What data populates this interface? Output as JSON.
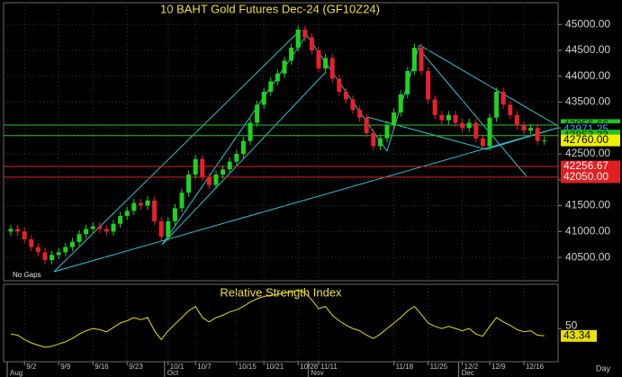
{
  "chart_data": [
    {
      "type": "candlestick",
      "title": "10 BAHT Gold Futures Dec-24 (GF10Z24)",
      "note": "No Gaps",
      "categories": [
        null,
        null,
        "9/2",
        null,
        null,
        null,
        null,
        "9/9",
        null,
        null,
        null,
        null,
        "9/16",
        null,
        null,
        null,
        null,
        "9/23",
        null,
        null,
        null,
        null,
        null,
        "10/1",
        null,
        null,
        null,
        "10/7",
        null,
        null,
        null,
        null,
        null,
        "10/15",
        null,
        null,
        null,
        "10/21",
        null,
        null,
        null,
        null,
        "10/28",
        null,
        null,
        "11/11",
        null,
        null,
        null,
        null,
        null,
        null,
        null,
        null,
        null,
        null,
        "11/18",
        null,
        null,
        null,
        null,
        "11/25",
        null,
        null,
        null,
        null,
        "12/2",
        null,
        null,
        null,
        "12/9",
        null,
        null,
        null,
        null,
        "12/16",
        null,
        null,
        null
      ],
      "months": [
        "Aug",
        null,
        null,
        null,
        null,
        null,
        null,
        null,
        null,
        null,
        null,
        null,
        null,
        null,
        null,
        null,
        null,
        null,
        null,
        null,
        null,
        null,
        null,
        "Oct",
        null,
        null,
        null,
        null,
        null,
        null,
        null,
        null,
        null,
        null,
        null,
        null,
        null,
        null,
        null,
        null,
        null,
        null,
        null,
        null,
        "Nov",
        null,
        null,
        null,
        null,
        null,
        null,
        null,
        null,
        null,
        null,
        null,
        null,
        null,
        null,
        null,
        null,
        null,
        null,
        null,
        null,
        null,
        "Dec",
        null,
        null,
        null,
        null,
        null,
        null,
        null,
        null,
        null,
        null,
        null,
        null
      ],
      "open": [
        41000,
        41050,
        41000,
        40850,
        40700,
        40600,
        40450,
        40550,
        40600,
        40700,
        40800,
        40950,
        41050,
        41100,
        41050,
        41000,
        41150,
        41300,
        41400,
        41550,
        41500,
        41600,
        41200,
        40900,
        41200,
        41450,
        41750,
        42100,
        42400,
        42050,
        41900,
        42100,
        42200,
        42350,
        42500,
        42750,
        43100,
        43450,
        43700,
        43900,
        44050,
        44300,
        44550,
        44900,
        44750,
        44500,
        44150,
        44350,
        43950,
        43700,
        43550,
        43350,
        43200,
        42900,
        42650,
        42800,
        43050,
        43300,
        43650,
        44100,
        44550,
        44100,
        43550,
        43250,
        43150,
        43250,
        43100,
        43000,
        43100,
        42800,
        42650,
        43200,
        43700,
        43450,
        43250,
        43050,
        42950,
        43000,
        42750
      ],
      "high": [
        41130,
        41130,
        41080,
        40930,
        40780,
        40680,
        40630,
        40680,
        40780,
        40880,
        41030,
        41130,
        41180,
        41180,
        41130,
        41230,
        41380,
        41480,
        41630,
        41630,
        41680,
        41680,
        41280,
        41280,
        41530,
        41830,
        42180,
        42480,
        42480,
        42130,
        42180,
        42280,
        42430,
        42580,
        42830,
        43180,
        43530,
        43780,
        43980,
        44130,
        44380,
        44630,
        44980,
        44980,
        44830,
        44580,
        44430,
        44430,
        44030,
        43780,
        43630,
        43430,
        43280,
        42980,
        42880,
        43130,
        43380,
        43730,
        44180,
        44630,
        44630,
        44180,
        43630,
        43330,
        43330,
        43330,
        43180,
        43180,
        43180,
        42880,
        43280,
        43780,
        43780,
        43530,
        43330,
        43130,
        43080,
        43080,
        42840
      ],
      "low": [
        40920,
        40920,
        40770,
        40620,
        40520,
        40370,
        40370,
        40470,
        40520,
        40620,
        40720,
        40870,
        40970,
        40970,
        40920,
        40920,
        41070,
        41220,
        41320,
        41420,
        41420,
        41120,
        40820,
        40820,
        41120,
        41370,
        41670,
        42020,
        41970,
        41820,
        41820,
        42020,
        42120,
        42270,
        42420,
        42670,
        43020,
        43370,
        43620,
        43820,
        43970,
        44220,
        44470,
        44670,
        44420,
        44070,
        44070,
        43870,
        43620,
        43470,
        43270,
        43120,
        42820,
        42570,
        42570,
        42720,
        42970,
        43220,
        43570,
        44020,
        44020,
        43470,
        43170,
        43070,
        43070,
        43020,
        42920,
        42920,
        42720,
        42570,
        42570,
        43120,
        43370,
        43170,
        42970,
        42870,
        42870,
        42670,
        42670
      ],
      "close": [
        41050,
        41000,
        40850,
        40700,
        40600,
        40450,
        40550,
        40600,
        40700,
        40800,
        40950,
        41050,
        41100,
        41050,
        41000,
        41150,
        41300,
        41400,
        41550,
        41500,
        41600,
        41200,
        40900,
        41200,
        41450,
        41750,
        42100,
        42400,
        42050,
        41900,
        42100,
        42200,
        42350,
        42500,
        42750,
        43100,
        43450,
        43700,
        43900,
        44050,
        44300,
        44550,
        44900,
        44750,
        44500,
        44150,
        44350,
        43950,
        43700,
        43550,
        43350,
        43200,
        42900,
        42650,
        42800,
        43050,
        43300,
        43650,
        44100,
        44550,
        44100,
        43550,
        43250,
        43150,
        43250,
        43100,
        43000,
        43100,
        42800,
        42650,
        43200,
        43700,
        43450,
        43250,
        43050,
        42950,
        43000,
        42750,
        42760
      ],
      "up_color": "#1ed41e",
      "down_color": "#e8202a",
      "ylim": [
        40050,
        45420
      ],
      "yticks": [
        {
          "value": 40500,
          "label": "40500.00"
        },
        {
          "value": 41000,
          "label": "41000.00"
        },
        {
          "value": 41500,
          "label": "41500.00"
        },
        {
          "value": 42000,
          "label": "42000.00"
        },
        {
          "value": 42500,
          "label": "42500.00"
        },
        {
          "value": 43000,
          "label": "43000.00"
        },
        {
          "value": 43500,
          "label": "43500.00"
        },
        {
          "value": 44000,
          "label": "44000.00"
        },
        {
          "value": 44500,
          "label": "44500.00"
        },
        {
          "value": 45000,
          "label": "45000.00"
        }
      ],
      "levels": [
        {
          "value": 43056.66,
          "label": "43056.66",
          "color": "#22c322",
          "line": true
        },
        {
          "value": 42975,
          "label": "42975.00",
          "color": "#1878c8",
          "line": false
        },
        {
          "value": 42971.25,
          "label": "42971.25",
          "color": "#1878c8",
          "line": false
        },
        {
          "value": 42853.33,
          "label": "42853.33",
          "color": "#22c322",
          "line": true
        },
        {
          "value": 42760,
          "label": "42760.00",
          "color": "#f0f000",
          "line": false
        },
        {
          "value": 42256.67,
          "label": "42256.67",
          "color": "#e02020",
          "line": true
        },
        {
          "value": 42050,
          "label": "42050.00",
          "color": "#e02020",
          "line": true
        }
      ],
      "grid": true
    },
    {
      "type": "line",
      "title": "Relative Strength Index",
      "xlabel": "Day",
      "color": "#e8e000",
      "values": [
        45,
        44,
        40,
        37,
        35,
        33,
        34,
        36,
        38,
        41,
        45,
        48,
        50,
        49,
        47,
        51,
        55,
        57,
        60,
        58,
        60,
        48,
        40,
        48,
        54,
        60,
        66,
        70,
        60,
        56,
        60,
        62,
        65,
        67,
        70,
        74,
        77,
        79,
        80,
        81,
        82,
        83,
        85,
        82,
        76,
        68,
        70,
        62,
        57,
        53,
        50,
        48,
        44,
        41,
        45,
        50,
        55,
        60,
        66,
        70,
        63,
        55,
        52,
        50,
        52,
        50,
        48,
        50,
        45,
        43,
        52,
        60,
        56,
        53,
        49,
        47,
        48,
        44,
        43.34
      ],
      "ylim": [
        20,
        90
      ],
      "yticks": [
        50
      ]
    }
  ]
}
